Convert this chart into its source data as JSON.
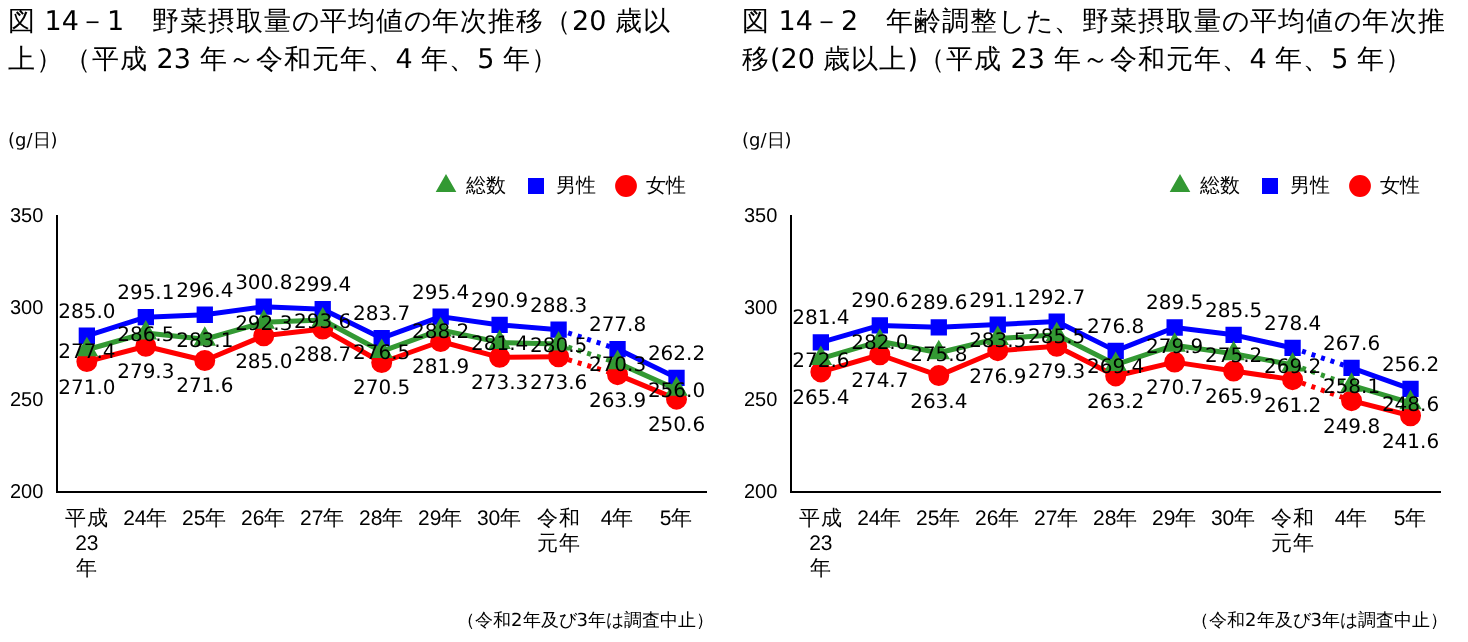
{
  "chart_data": [
    {
      "type": "line",
      "title": "図 14－1　野菜摂取量の平均値の年次推移（20 歳以上）（平成 23 年～令和元年、4 年、5 年）",
      "ylabel": "(g/日)",
      "categories": [
        "平成23年",
        "24年",
        "25年",
        "26年",
        "27年",
        "28年",
        "29年",
        "30年",
        "令和元年",
        "4年",
        "5年"
      ],
      "series": [
        {
          "name": "総数",
          "color": "#339933",
          "marker": "triangle",
          "line_style": [
            "solid",
            "solid",
            "solid",
            "solid",
            "solid",
            "solid",
            "solid",
            "solid",
            "dotted",
            "solid"
          ],
          "values": [
            277.4,
            286.5,
            283.1,
            292.3,
            293.6,
            276.5,
            288.2,
            281.4,
            280.5,
            270.3,
            256.0
          ],
          "value_labels": [
            "277.4",
            "286.5",
            "283.1",
            "292.3",
            "293.6",
            "276.5",
            "288.2",
            "281.4",
            "280.5",
            "270.3",
            "256.0"
          ]
        },
        {
          "name": "男性",
          "color": "#0000ff",
          "marker": "square",
          "line_style": [
            "solid",
            "solid",
            "solid",
            "solid",
            "solid",
            "solid",
            "solid",
            "solid",
            "dotted",
            "solid"
          ],
          "values": [
            285.0,
            295.1,
            296.4,
            300.8,
            299.4,
            283.7,
            295.4,
            290.9,
            288.3,
            277.8,
            262.2
          ],
          "value_labels": [
            "285.0",
            "295.1",
            "296.4",
            "300.8",
            "299.4",
            "283.7",
            "295.4",
            "290.9",
            "288.3",
            "277.8",
            "262.2"
          ]
        },
        {
          "name": "女性",
          "color": "#ff0000",
          "marker": "circle",
          "line_style": [
            "solid",
            "solid",
            "solid",
            "solid",
            "solid",
            "solid",
            "solid",
            "solid",
            "dotted",
            "solid"
          ],
          "values": [
            271.0,
            279.3,
            271.6,
            285.0,
            288.7,
            270.5,
            281.9,
            273.3,
            273.6,
            263.9,
            250.6
          ],
          "value_labels": [
            "271.0",
            "279.3",
            "271.6",
            "285.0",
            "288.7",
            "270.5",
            "281.9",
            "273.3",
            "273.6",
            "263.9",
            "250.6"
          ]
        }
      ],
      "ylim": [
        200,
        350
      ],
      "yticks": [
        200,
        250,
        300,
        350
      ],
      "grid": false,
      "legend": "top right",
      "annotations": [
        "（令和2年及び3年は調査中止）"
      ]
    },
    {
      "type": "line",
      "title": "図 14－2　年齢調整した、野菜摂取量の平均値の年次推移(20 歳以上)（平成 23 年～令和元年、4 年、5 年）",
      "ylabel": "(g/日)",
      "categories": [
        "平成23年",
        "24年",
        "25年",
        "26年",
        "27年",
        "28年",
        "29年",
        "30年",
        "令和元年",
        "4年",
        "5年"
      ],
      "series": [
        {
          "name": "総数",
          "color": "#339933",
          "marker": "triangle",
          "line_style": [
            "solid",
            "solid",
            "solid",
            "solid",
            "solid",
            "solid",
            "solid",
            "solid",
            "dotted",
            "solid"
          ],
          "values": [
            272.6,
            282.0,
            275.8,
            283.5,
            285.5,
            269.4,
            279.9,
            275.2,
            269.2,
            258.1,
            248.6
          ],
          "value_labels": [
            "272.6",
            "282.0",
            "275.8",
            "283.5",
            "285.5",
            "269.4",
            "279.9",
            "275.2",
            "269.2",
            "258.1",
            "248.6"
          ]
        },
        {
          "name": "男性",
          "color": "#0000ff",
          "marker": "square",
          "line_style": [
            "solid",
            "solid",
            "solid",
            "solid",
            "solid",
            "solid",
            "solid",
            "solid",
            "dotted",
            "solid"
          ],
          "values": [
            281.4,
            290.6,
            289.6,
            291.1,
            292.7,
            276.8,
            289.5,
            285.5,
            278.4,
            267.6,
            256.2
          ],
          "value_labels": [
            "281.4",
            "290.6",
            "289.6",
            "291.1",
            "292.7",
            "276.8",
            "289.5",
            "285.5",
            "278.4",
            "267.6",
            "256.2"
          ]
        },
        {
          "name": "女性",
          "color": "#ff0000",
          "marker": "circle",
          "line_style": [
            "solid",
            "solid",
            "solid",
            "solid",
            "solid",
            "solid",
            "solid",
            "solid",
            "dotted",
            "solid"
          ],
          "values": [
            265.4,
            274.7,
            263.4,
            276.9,
            279.3,
            263.2,
            270.7,
            265.9,
            261.2,
            249.8,
            241.6
          ],
          "value_labels": [
            "265.4",
            "274.7",
            "263.4",
            "276.9",
            "279.3",
            "263.2",
            "270.7",
            "265.9",
            "261.2",
            "249.8",
            "241.6"
          ]
        }
      ],
      "ylim": [
        200,
        350
      ],
      "yticks": [
        200,
        250,
        300,
        350
      ],
      "grid": false,
      "legend": "top right",
      "annotations": [
        "（令和2年及び3年は調査中止）"
      ]
    }
  ]
}
